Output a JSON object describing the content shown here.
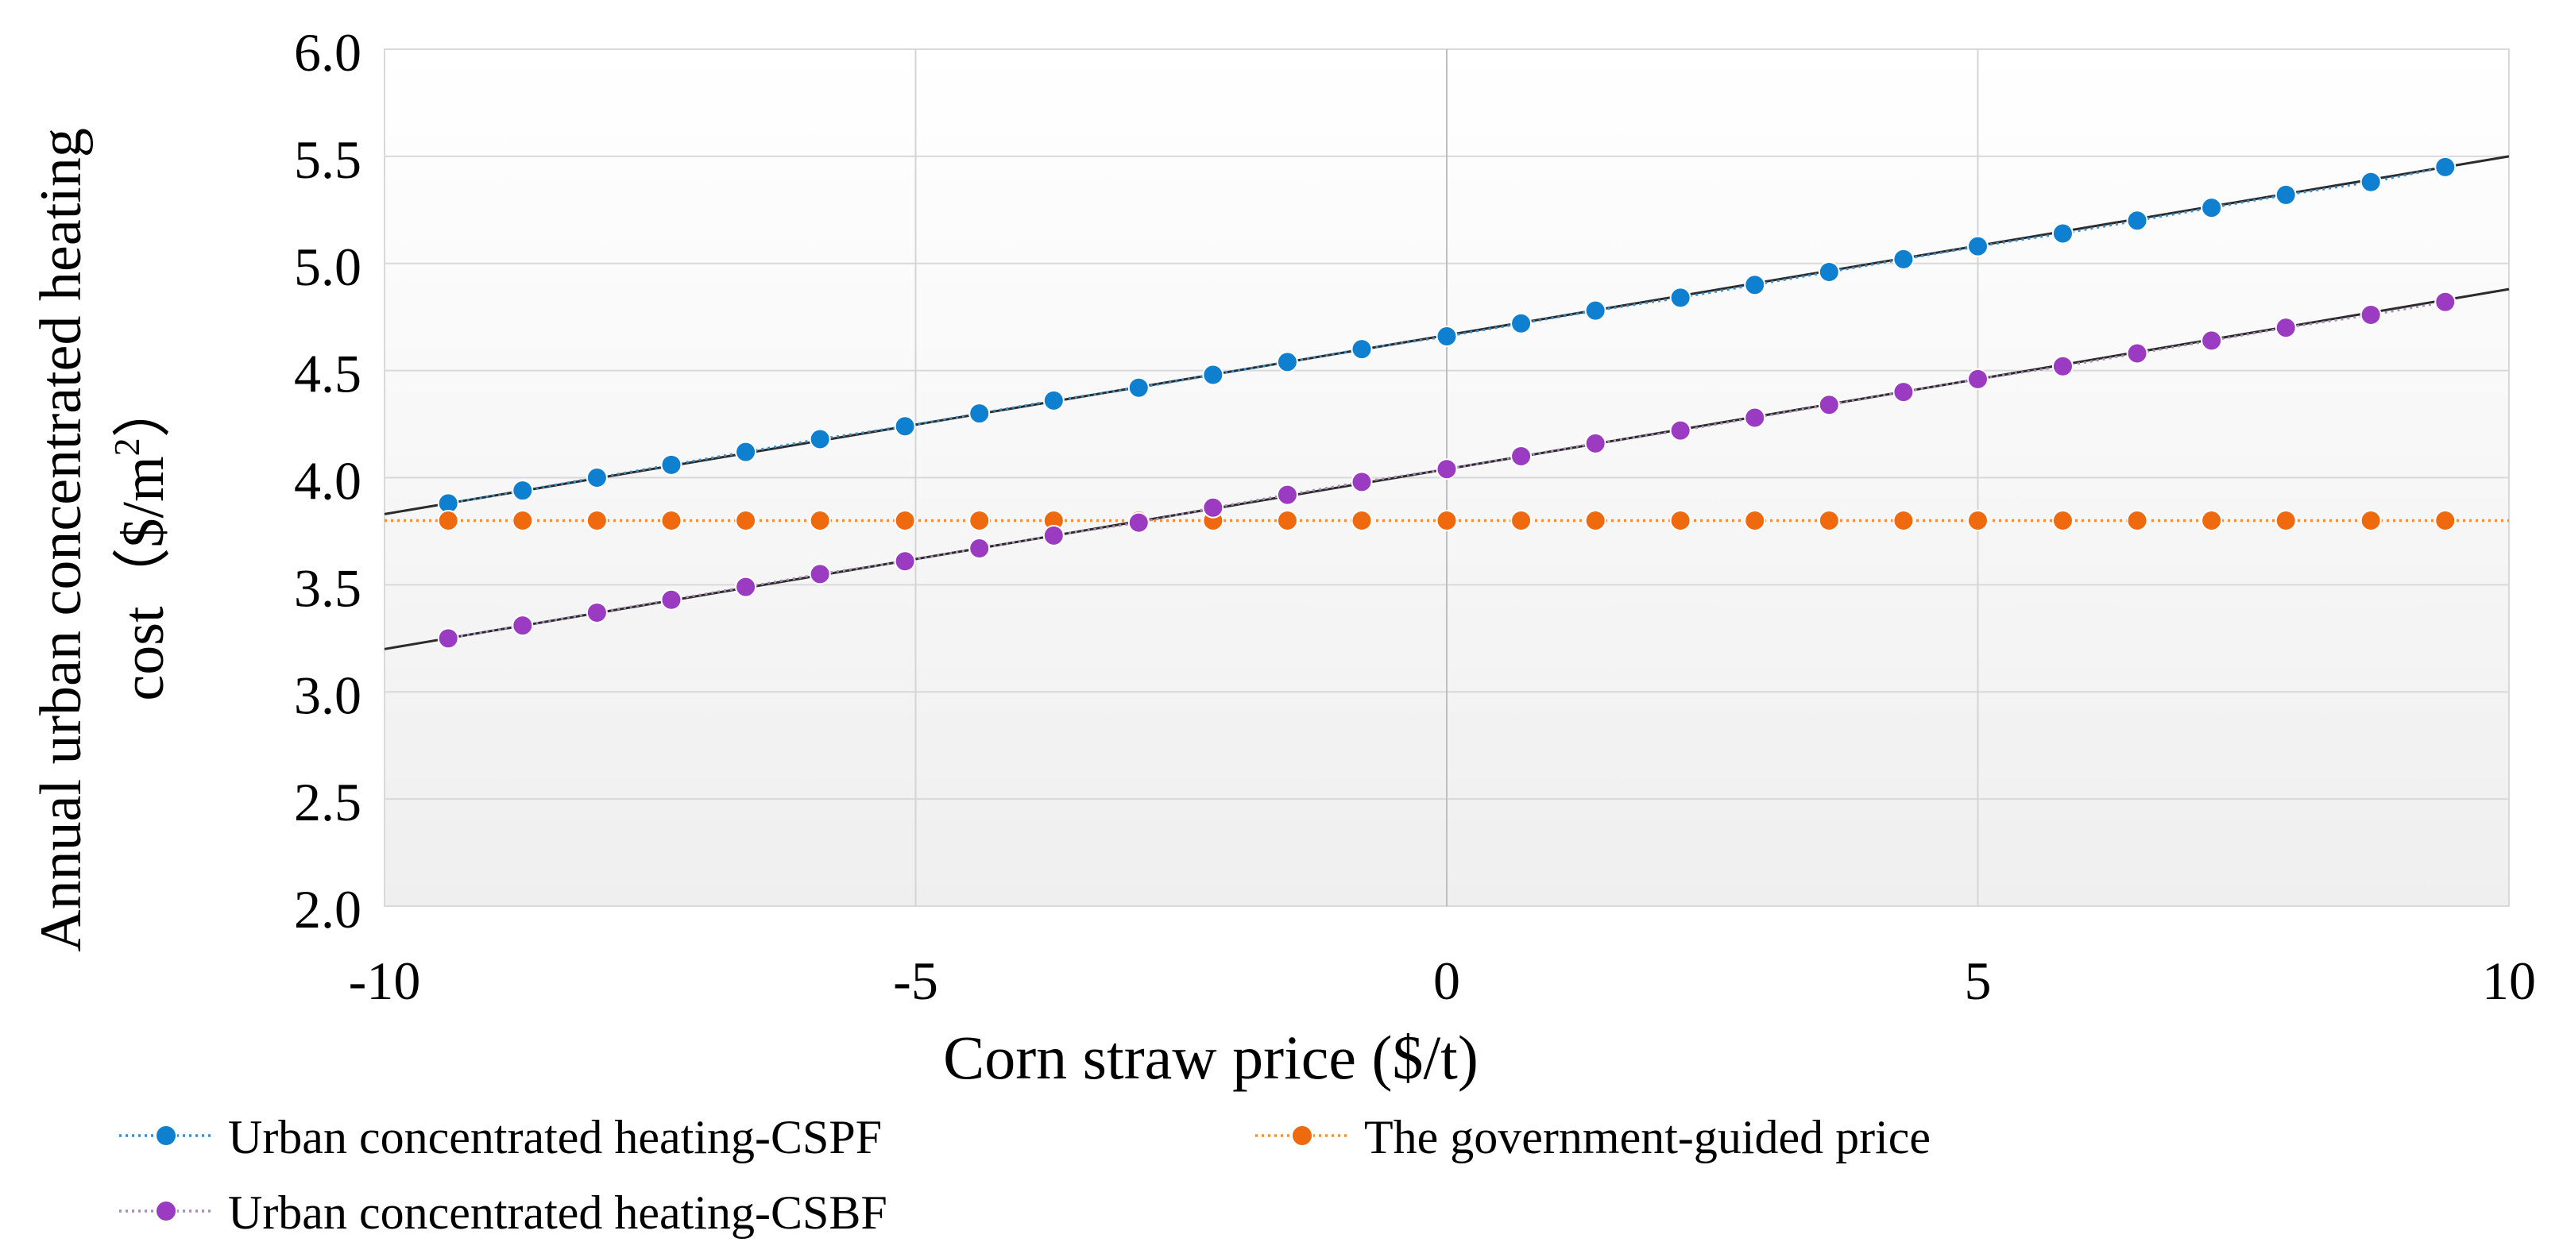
{
  "chart_data": {
    "type": "line",
    "title": "",
    "xlabel": "Corn straw price ($/t)",
    "ylabel_line1": "Annual urban concentrated heating",
    "ylabel_line2_prefix": "cost（$/m",
    "ylabel_line2_sup": "2",
    "ylabel_line2_suffix": "）",
    "xlim": [
      -10,
      10
    ],
    "ylim": [
      2.0,
      6.0
    ],
    "x_ticks": [
      -10,
      -5,
      0,
      5,
      10
    ],
    "x_tick_labels": [
      "-10",
      "-5",
      "0",
      "5",
      "10"
    ],
    "y_ticks": [
      2.0,
      2.5,
      3.0,
      3.5,
      4.0,
      4.5,
      5.0,
      5.5,
      6.0
    ],
    "y_tick_labels": [
      "2.0",
      "2.5",
      "3.0",
      "3.5",
      "4.0",
      "4.5",
      "5.0",
      "5.5",
      "6.0"
    ],
    "grid": true,
    "legend_position": "bottom",
    "x": [
      -9.4,
      -8.7,
      -8.0,
      -7.3,
      -6.6,
      -5.9,
      -5.1,
      -4.4,
      -3.7,
      -2.9,
      -2.2,
      -1.5,
      -0.8,
      0.0,
      0.7,
      1.4,
      2.2,
      2.9,
      3.6,
      4.3,
      5.0,
      5.8,
      6.5,
      7.2,
      7.9,
      8.7,
      9.4
    ],
    "series": [
      {
        "name": "Urban concentrated heating-CSPF",
        "color": "#0f7fd0",
        "line_color": "#3a8fc8",
        "trendline": [
          [
            -10,
            3.83
          ],
          [
            10,
            5.5
          ]
        ],
        "values": [
          3.88,
          3.94,
          4.0,
          4.06,
          4.12,
          4.18,
          4.24,
          4.3,
          4.36,
          4.42,
          4.48,
          4.54,
          4.6,
          4.66,
          4.72,
          4.78,
          4.84,
          4.9,
          4.96,
          5.02,
          5.08,
          5.14,
          5.2,
          5.26,
          5.32,
          5.38,
          5.45
        ]
      },
      {
        "name": "The government-guided price",
        "color": "#ef6a0f",
        "line_color": "#f0903c",
        "trendline": null,
        "values": [
          3.8,
          3.8,
          3.8,
          3.8,
          3.8,
          3.8,
          3.8,
          3.8,
          3.8,
          3.8,
          3.8,
          3.8,
          3.8,
          3.8,
          3.8,
          3.8,
          3.8,
          3.8,
          3.8,
          3.8,
          3.8,
          3.8,
          3.8,
          3.8,
          3.8,
          3.8,
          3.8
        ]
      },
      {
        "name": "Urban concentrated heating-CSBF",
        "color": "#9a3bc2",
        "line_color": "#a98bb8",
        "trendline": [
          [
            -10,
            3.2
          ],
          [
            10,
            4.88
          ]
        ],
        "values": [
          3.25,
          3.31,
          3.37,
          3.43,
          3.49,
          3.55,
          3.61,
          3.67,
          3.73,
          3.79,
          3.86,
          3.92,
          3.98,
          4.04,
          4.1,
          4.16,
          4.22,
          4.28,
          4.34,
          4.4,
          4.46,
          4.52,
          4.58,
          4.64,
          4.7,
          4.76,
          4.82
        ]
      }
    ]
  }
}
